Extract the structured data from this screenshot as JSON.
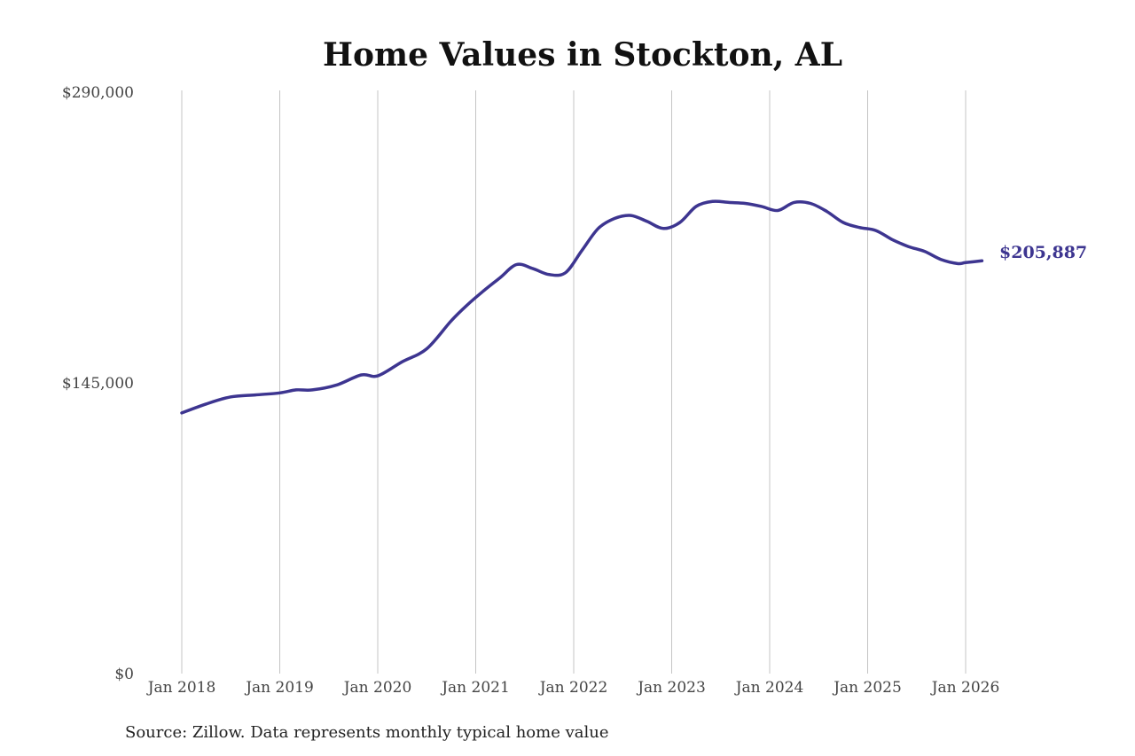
{
  "colors": {
    "series": "#3d3590",
    "grid": "#c4c4c4",
    "text": "#111111",
    "axis_text": "#444444"
  },
  "source_note": "Source: Zillow. Data represents monthly typical home value",
  "chart_data": {
    "type": "line",
    "title": "Home Values in Stockton, AL",
    "xlabel": "",
    "ylabel": "",
    "ylim": [
      0,
      290000
    ],
    "xlim": [
      "2018-01",
      "2026-03"
    ],
    "grid": "vertical at x ticks",
    "y_ticks": [
      {
        "value": 0,
        "label": "$0"
      },
      {
        "value": 145000,
        "label": "$145,000"
      },
      {
        "value": 290000,
        "label": "$290,000"
      }
    ],
    "x_ticks": [
      {
        "value": "2018-01",
        "label": "Jan 2018"
      },
      {
        "value": "2019-01",
        "label": "Jan 2019"
      },
      {
        "value": "2020-01",
        "label": "Jan 2020"
      },
      {
        "value": "2021-01",
        "label": "Jan 2021"
      },
      {
        "value": "2022-01",
        "label": "Jan 2022"
      },
      {
        "value": "2023-01",
        "label": "Jan 2023"
      },
      {
        "value": "2024-01",
        "label": "Jan 2024"
      },
      {
        "value": "2025-01",
        "label": "Jan 2025"
      },
      {
        "value": "2026-01",
        "label": "Jan 2026"
      }
    ],
    "end_label": "$205,887",
    "series": [
      {
        "x": [
          "2018-01",
          "2018-04",
          "2018-07",
          "2018-10",
          "2019-01",
          "2019-03",
          "2019-05",
          "2019-08",
          "2019-11",
          "2020-01",
          "2020-04",
          "2020-07",
          "2020-10",
          "2020-12",
          "2021-02",
          "2021-04",
          "2021-06",
          "2021-08",
          "2021-10",
          "2021-12",
          "2022-02",
          "2022-04",
          "2022-06",
          "2022-08",
          "2022-10",
          "2022-12",
          "2023-02",
          "2023-04",
          "2023-06",
          "2023-08",
          "2023-10",
          "2023-12",
          "2024-02",
          "2024-04",
          "2024-06",
          "2024-08",
          "2024-10",
          "2024-12",
          "2025-02",
          "2025-04",
          "2025-06",
          "2025-08",
          "2025-10",
          "2025-12",
          "2026-01",
          "2026-03"
        ],
        "values": [
          130000,
          134500,
          138000,
          139000,
          140000,
          141500,
          141500,
          144000,
          149000,
          148500,
          155500,
          162000,
          176000,
          184000,
          191000,
          197500,
          204000,
          202000,
          199000,
          200000,
          211000,
          222000,
          227000,
          228500,
          225500,
          222000,
          225000,
          233000,
          235500,
          235000,
          234500,
          233000,
          231000,
          235000,
          234500,
          230500,
          225000,
          222500,
          221000,
          216500,
          213000,
          210500,
          206500,
          204500,
          205000,
          205887
        ]
      }
    ]
  }
}
